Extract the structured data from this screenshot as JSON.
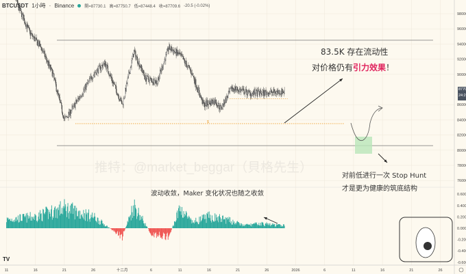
{
  "header": {
    "symbol": "BTCUSDT",
    "interval": "1小時",
    "exchange": "Binance",
    "open": "開=87730.1",
    "high": "高=87750.7",
    "low": "低=87448.4",
    "close": "收=87709.6",
    "change": "-20.5 (-0.02%)"
  },
  "price_tag": {
    "price": "87709.6",
    "countdown": "24:29",
    "color": "#4a5360"
  },
  "annotations": {
    "liquidity_1": "83.5K 存在流动性",
    "liquidity_2a": "对价格仍有",
    "liquidity_2b": "引力效果",
    "liquidity_2c": "！",
    "stophunt_1": "对前低进行一次 Stop Hunt",
    "stophunt_2": "才是更为健康的筑底结构",
    "oscillator_note": "波动收敛，Maker 变化状况也随之收敛",
    "watermark": "推特：@market_beggar（貝格先生）",
    "highlight_color": "#e0245e"
  },
  "colors": {
    "up": "#26a69a",
    "down": "#ef5350",
    "candle": "#333333",
    "level": "#888888",
    "liquidity": "#f0a030",
    "zone": "#b9e6b9"
  },
  "chart_data": {
    "type": "candlestick",
    "price_axis": {
      "ticks": [
        "98000.0",
        "96000.0",
        "94000.0",
        "92000.0",
        "90000.0",
        "86000.0",
        "84000.0",
        "82000.0",
        "80000.0",
        "78000.0",
        "76000.0"
      ],
      "range": [
        75000,
        99500
      ]
    },
    "oscillator_axis": {
      "ticks": [
        "0.6000",
        "0.4000",
        "0.2000",
        "0.0000",
        "-0.2000",
        "-0.4000",
        "-0.6000"
      ],
      "range": [
        -0.65,
        0.65
      ]
    },
    "x_ticks": [
      "11",
      "16",
      "21",
      "26",
      "十二月",
      "6",
      "11",
      "16",
      "21",
      "26",
      "2026",
      "6",
      "11",
      "16",
      "21",
      "26"
    ],
    "price_path": [
      [
        "Nov 11",
        104000
      ],
      [
        "Nov 13",
        99000
      ],
      [
        "Nov 15",
        95500
      ],
      [
        "Nov 17",
        93500
      ],
      [
        "Nov 19",
        90000
      ],
      [
        "Nov 21",
        84000
      ],
      [
        "Nov 22",
        85000
      ],
      [
        "Nov 24",
        87500
      ],
      [
        "Nov 26",
        90000
      ],
      [
        "Nov 28",
        91500
      ],
      [
        "Dec 1",
        86000
      ],
      [
        "Dec 3",
        93000
      ],
      [
        "Dec 5",
        89500
      ],
      [
        "Dec 7",
        89000
      ],
      [
        "Dec 9",
        93500
      ],
      [
        "Dec 11",
        92500
      ],
      [
        "Dec 13",
        90200
      ],
      [
        "Dec 15",
        86000
      ],
      [
        "Dec 17",
        86500
      ],
      [
        "Dec 18",
        85500
      ],
      [
        "Dec 20",
        88200
      ],
      [
        "Dec 23",
        87500
      ],
      [
        "Dec 25",
        87500
      ],
      [
        "Dec 28",
        87700
      ]
    ],
    "oscillator_path": [
      [
        "Nov 11",
        0.15
      ],
      [
        "Nov 16",
        0.2
      ],
      [
        "Nov 21",
        0.35
      ],
      [
        "Nov 26",
        0.2
      ],
      [
        "Dec 1",
        -0.15
      ],
      [
        "Dec 3",
        0.4
      ],
      [
        "Dec 6",
        -0.1
      ],
      [
        "Dec 9",
        -0.15
      ],
      [
        "Dec 11",
        0.35
      ],
      [
        "Dec 13",
        0.1
      ],
      [
        "Dec 16",
        0.2
      ],
      [
        "Dec 19",
        0.15
      ],
      [
        "Dec 22",
        0.05
      ],
      [
        "Dec 25",
        0.08
      ],
      [
        "Dec 28",
        0.05
      ]
    ],
    "levels": [
      {
        "price": 94500,
        "style": "solid"
      },
      {
        "price": 80600,
        "style": "solid"
      },
      {
        "price": 83500,
        "style": "dotted",
        "label": "$"
      },
      {
        "price": 86800,
        "style": "dotted"
      }
    ]
  }
}
